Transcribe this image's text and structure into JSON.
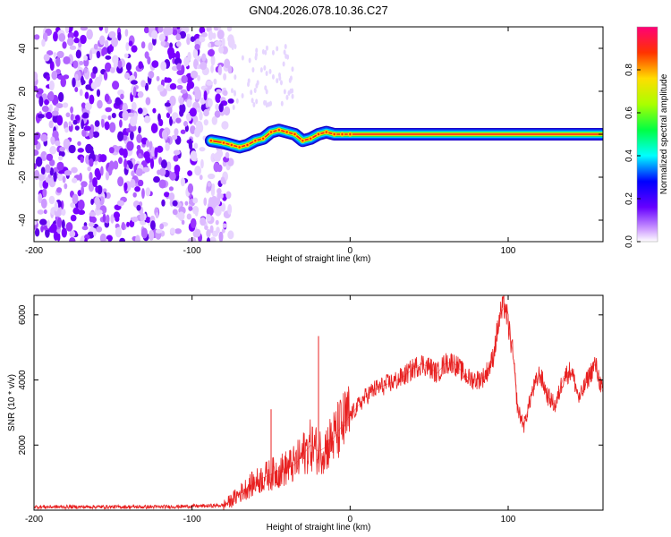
{
  "figure": {
    "title": "GN04.2026.078.10.36.C27"
  },
  "chart_data": [
    {
      "type": "heatmap",
      "xlabel": "Height of straight line (km)",
      "ylabel": "Frequency (Hz)",
      "xlim": [
        -200,
        160
      ],
      "ylim": [
        -50,
        50
      ],
      "xticks": [
        -200,
        -100,
        0,
        100
      ],
      "xtick_labels": [
        "-200",
        "-100",
        "0",
        "100"
      ],
      "yticks": [
        -40,
        -20,
        0,
        20,
        40
      ],
      "ytick_labels": [
        "-40",
        "-20",
        "0",
        "20",
        "40"
      ],
      "noise_region_x": [
        -200,
        -75
      ],
      "signal_line": {
        "x": [
          -88,
          -80,
          -75,
          -70,
          -65,
          -60,
          -55,
          -50,
          -45,
          -40,
          -35,
          -30,
          -25,
          -20,
          -15,
          -10,
          -5,
          0,
          20,
          60,
          100,
          160
        ],
        "y": [
          -3,
          -4,
          -5,
          -6,
          -5,
          -3,
          -2,
          1,
          2,
          1,
          0,
          -3,
          -2,
          0,
          1,
          0,
          0,
          0,
          0,
          0,
          0,
          0
        ]
      },
      "colorbar": {
        "label": "Normalized spectral amplitude",
        "range": [
          0,
          1
        ],
        "ticks": [
          0.0,
          0.2,
          0.4,
          0.6,
          0.8
        ],
        "tick_labels": [
          "0.0",
          "0.2",
          "0.4",
          "0.6",
          "0.8"
        ]
      }
    },
    {
      "type": "line",
      "xlabel": "Height of straight line (km)",
      "ylabel": "SNR (10 * v/v)",
      "xlim": [
        -200,
        160
      ],
      "ylim": [
        0,
        6600
      ],
      "xticks": [
        -200,
        -100,
        0,
        100
      ],
      "xtick_labels": [
        "-200",
        "-100",
        "0",
        "100"
      ],
      "yticks": [
        2000,
        4000,
        6000
      ],
      "ytick_labels": [
        "2000",
        "4000",
        "6000"
      ],
      "series": [
        {
          "name": "SNR",
          "color": "#e82020",
          "x": [
            -200,
            -180,
            -160,
            -140,
            -120,
            -100,
            -90,
            -80,
            -75,
            -70,
            -65,
            -60,
            -55,
            -50,
            -45,
            -40,
            -35,
            -30,
            -25,
            -20,
            -15,
            -10,
            -5,
            0,
            5,
            10,
            15,
            20,
            25,
            30,
            35,
            40,
            45,
            50,
            55,
            60,
            65,
            70,
            75,
            80,
            85,
            90,
            95,
            98,
            100,
            103,
            106,
            110,
            115,
            120,
            125,
            130,
            135,
            140,
            145,
            150,
            155,
            160
          ],
          "y": [
            100,
            100,
            100,
            100,
            100,
            120,
            130,
            150,
            300,
            500,
            700,
            850,
            1000,
            1100,
            1200,
            1300,
            1400,
            1700,
            2000,
            1800,
            1950,
            2250,
            2600,
            2900,
            3200,
            3500,
            3700,
            3800,
            3900,
            4000,
            4150,
            4350,
            4500,
            4400,
            4200,
            4500,
            4550,
            4300,
            4050,
            4000,
            4100,
            4600,
            6000,
            6300,
            5700,
            4800,
            3100,
            2600,
            3600,
            4200,
            3500,
            3200,
            4100,
            4300,
            3400,
            4000,
            4500,
            3600
          ]
        }
      ],
      "spikes": [
        {
          "x": -50,
          "y": 3100
        },
        {
          "x": -20,
          "y": 5350
        }
      ]
    }
  ]
}
